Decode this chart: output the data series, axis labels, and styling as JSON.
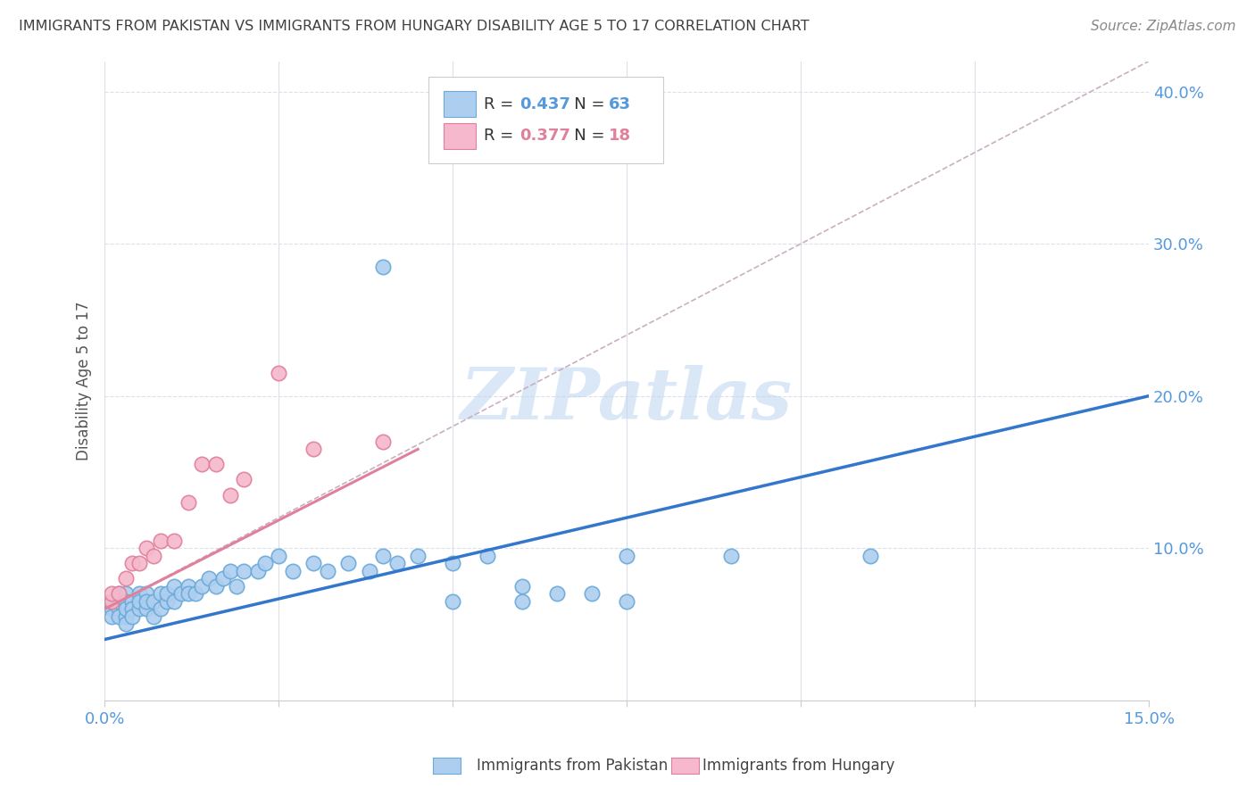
{
  "title": "IMMIGRANTS FROM PAKISTAN VS IMMIGRANTS FROM HUNGARY DISABILITY AGE 5 TO 17 CORRELATION CHART",
  "source": "Source: ZipAtlas.com",
  "ylabel_label": "Disability Age 5 to 17",
  "xlim": [
    0.0,
    0.15
  ],
  "ylim": [
    0.0,
    0.42
  ],
  "x_ticks": [
    0.0,
    0.025,
    0.05,
    0.075,
    0.1,
    0.125,
    0.15
  ],
  "y_ticks": [
    0.0,
    0.1,
    0.2,
    0.3,
    0.4
  ],
  "pakistan_color": "#aecef0",
  "pakistan_edge_color": "#6aaad8",
  "hungary_color": "#f5b8cc",
  "hungary_edge_color": "#e0809a",
  "pakistan_R": 0.437,
  "pakistan_N": 63,
  "hungary_R": 0.377,
  "hungary_N": 18,
  "pakistan_line_color": "#3377cc",
  "hungary_line_color": "#e0809a",
  "dashed_line_color": "#c8b0c0",
  "watermark": "ZIPatlas",
  "background_color": "#ffffff",
  "grid_color": "#dde0e8",
  "title_color": "#404040",
  "axis_tick_color": "#5599dd",
  "legend_pak_color": "#5599dd",
  "legend_hun_color": "#e0809a",
  "pakistan_trendline": [
    0.0,
    0.15,
    0.04,
    0.2
  ],
  "hungary_trendline": [
    0.0,
    0.045,
    0.06,
    0.165
  ],
  "hungary_dashed": [
    0.0,
    0.15,
    0.06,
    0.465
  ],
  "pak_x": [
    0.001,
    0.001,
    0.001,
    0.002,
    0.002,
    0.002,
    0.002,
    0.003,
    0.003,
    0.003,
    0.003,
    0.003,
    0.004,
    0.004,
    0.004,
    0.005,
    0.005,
    0.005,
    0.006,
    0.006,
    0.006,
    0.007,
    0.007,
    0.008,
    0.008,
    0.009,
    0.009,
    0.01,
    0.01,
    0.011,
    0.012,
    0.012,
    0.013,
    0.014,
    0.015,
    0.016,
    0.017,
    0.018,
    0.019,
    0.02,
    0.022,
    0.023,
    0.025,
    0.027,
    0.03,
    0.032,
    0.035,
    0.038,
    0.04,
    0.042,
    0.045,
    0.05,
    0.055,
    0.06,
    0.065,
    0.07,
    0.04,
    0.075,
    0.09,
    0.05,
    0.06,
    0.075,
    0.11
  ],
  "pak_y": [
    0.06,
    0.065,
    0.055,
    0.07,
    0.06,
    0.065,
    0.055,
    0.07,
    0.065,
    0.055,
    0.06,
    0.05,
    0.065,
    0.06,
    0.055,
    0.07,
    0.06,
    0.065,
    0.07,
    0.06,
    0.065,
    0.065,
    0.055,
    0.07,
    0.06,
    0.065,
    0.07,
    0.075,
    0.065,
    0.07,
    0.075,
    0.07,
    0.07,
    0.075,
    0.08,
    0.075,
    0.08,
    0.085,
    0.075,
    0.085,
    0.085,
    0.09,
    0.095,
    0.085,
    0.09,
    0.085,
    0.09,
    0.085,
    0.095,
    0.09,
    0.095,
    0.09,
    0.095,
    0.075,
    0.07,
    0.07,
    0.285,
    0.095,
    0.095,
    0.065,
    0.065,
    0.065,
    0.095
  ],
  "hun_x": [
    0.001,
    0.001,
    0.002,
    0.003,
    0.004,
    0.005,
    0.006,
    0.007,
    0.008,
    0.01,
    0.012,
    0.014,
    0.016,
    0.018,
    0.02,
    0.025,
    0.03,
    0.04
  ],
  "hun_y": [
    0.065,
    0.07,
    0.07,
    0.08,
    0.09,
    0.09,
    0.1,
    0.095,
    0.105,
    0.105,
    0.13,
    0.155,
    0.155,
    0.135,
    0.145,
    0.215,
    0.165,
    0.17
  ]
}
